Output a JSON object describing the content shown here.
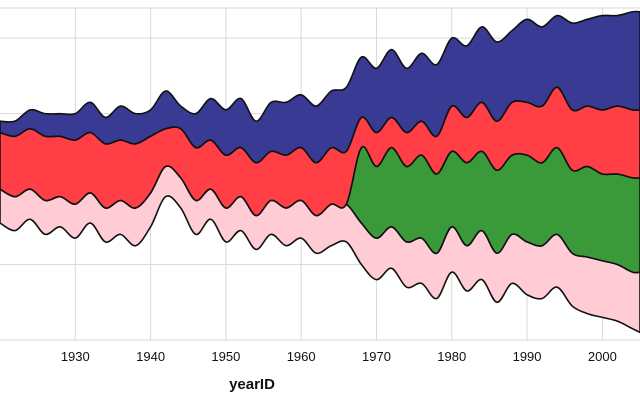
{
  "chart_data": {
    "type": "area",
    "subtype": "streamgraph",
    "xlabel": "yearID",
    "x_ticks": [
      1930,
      1940,
      1950,
      1960,
      1970,
      1980,
      1990,
      2000
    ],
    "xlim": [
      1920,
      2005
    ],
    "ylim": [
      -40,
      48
    ],
    "grid": true,
    "legend": "none",
    "layer_colors": [
      "#ffccd5",
      "#3a9a3a",
      "#ff3e45",
      "#383a94"
    ],
    "years": [
      1920,
      1922,
      1924,
      1926,
      1928,
      1930,
      1932,
      1934,
      1936,
      1938,
      1940,
      1942,
      1944,
      1946,
      1948,
      1950,
      1952,
      1954,
      1956,
      1958,
      1960,
      1962,
      1964,
      1966,
      1968,
      1970,
      1972,
      1974,
      1976,
      1978,
      1980,
      1982,
      1984,
      1986,
      1988,
      1990,
      1992,
      1994,
      1996,
      1998,
      2000,
      2002,
      2004,
      2005
    ],
    "stack_bottom": [
      -9,
      -11,
      -8,
      -12,
      -10,
      -13,
      -9,
      -14,
      -12,
      -15,
      -10,
      -2,
      -5,
      -12,
      -8,
      -14,
      -11,
      -16,
      -12,
      -15,
      -13,
      -17,
      -15,
      -14,
      -20,
      -24,
      -21,
      -26,
      -25,
      -29,
      -22,
      -27,
      -24,
      -30,
      -25,
      -28,
      -29,
      -26,
      -31,
      -33,
      -34,
      -35,
      -37,
      -38
    ],
    "series": [
      {
        "values": [
          9,
          9,
          8,
          9,
          8,
          9,
          8,
          9,
          9,
          10,
          9,
          8,
          8,
          9,
          8,
          9,
          9,
          9,
          9,
          10,
          10,
          10,
          11,
          10,
          11,
          11,
          11,
          12,
          12,
          12,
          12,
          12,
          13,
          13,
          13,
          14,
          14,
          14,
          14,
          15,
          15,
          15,
          15,
          16
        ]
      },
      {
        "values": [
          0,
          0,
          0,
          0,
          0,
          0,
          0,
          0,
          0,
          0,
          0,
          0,
          0,
          0,
          0,
          0,
          0,
          0,
          0,
          0,
          0,
          0,
          0,
          0,
          20,
          19,
          21,
          20,
          22,
          21,
          20,
          22,
          21,
          22,
          21,
          23,
          22,
          23,
          22,
          24,
          23,
          24,
          25,
          25
        ]
      },
      {
        "values": [
          15,
          16,
          16,
          17,
          16,
          17,
          16,
          17,
          16,
          17,
          15,
          10,
          13,
          14,
          13,
          14,
          13,
          14,
          13,
          14,
          14,
          14,
          15,
          14,
          8,
          9,
          8,
          9,
          9,
          10,
          12,
          12,
          13,
          13,
          14,
          14,
          15,
          16,
          16,
          16,
          17,
          18,
          18,
          18
        ]
      },
      {
        "values": [
          3,
          4,
          5,
          6,
          6,
          7,
          8,
          7,
          9,
          8,
          7,
          10,
          6,
          9,
          11,
          12,
          13,
          11,
          13,
          14,
          14,
          15,
          15,
          17,
          16,
          17,
          18,
          17,
          18,
          19,
          18,
          19,
          20,
          21,
          19,
          22,
          21,
          19,
          23,
          23,
          25,
          24,
          26,
          26
        ]
      }
    ]
  }
}
